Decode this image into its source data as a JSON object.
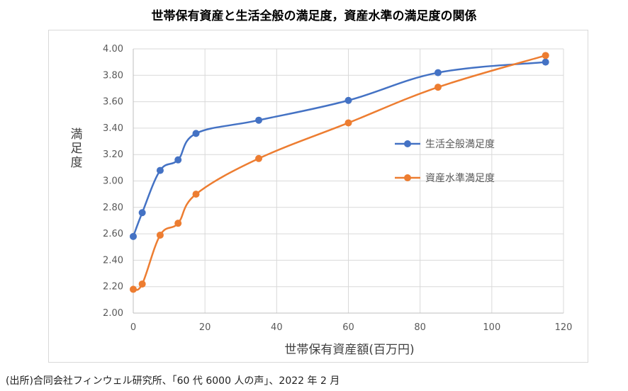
{
  "chart_data": {
    "type": "scatter",
    "title": "世帯保有資産と生活全般の満足度，資産水準の満足度の関係",
    "xlabel": "世帯保有資産額(百万円)",
    "ylabel": "満足度",
    "xlim": [
      0,
      120
    ],
    "ylim": [
      2.0,
      4.0
    ],
    "xticks": [
      "0",
      "20",
      "40",
      "60",
      "80",
      "100",
      "120"
    ],
    "yticks": [
      "2.00",
      "2.20",
      "2.40",
      "2.60",
      "2.80",
      "3.00",
      "3.20",
      "3.40",
      "3.60",
      "3.80",
      "4.00"
    ],
    "grid": true,
    "smooth_lines": true,
    "legend_position": "right",
    "series": [
      {
        "name": "生活全般満足度",
        "color": "#4472C4",
        "x": [
          0,
          2.5,
          7.5,
          12.5,
          17.5,
          35,
          60,
          85,
          115
        ],
        "y": [
          2.58,
          2.76,
          3.08,
          3.16,
          3.36,
          3.46,
          3.61,
          3.82,
          3.9
        ]
      },
      {
        "name": "資産水準満足度",
        "color": "#ED7D31",
        "x": [
          0,
          2.5,
          7.5,
          12.5,
          17.5,
          35,
          60,
          85,
          115
        ],
        "y": [
          2.18,
          2.22,
          2.59,
          2.68,
          2.9,
          3.17,
          3.44,
          3.71,
          3.95
        ]
      }
    ]
  },
  "source": "(出所)合同会社フィンウェル研究所、「60 代 6000 人の声」、2022 年 2 月",
  "colors": {
    "gridline": "#d9d9d9",
    "axis": "#bfbfbf",
    "frame": "#d9d9d9"
  }
}
